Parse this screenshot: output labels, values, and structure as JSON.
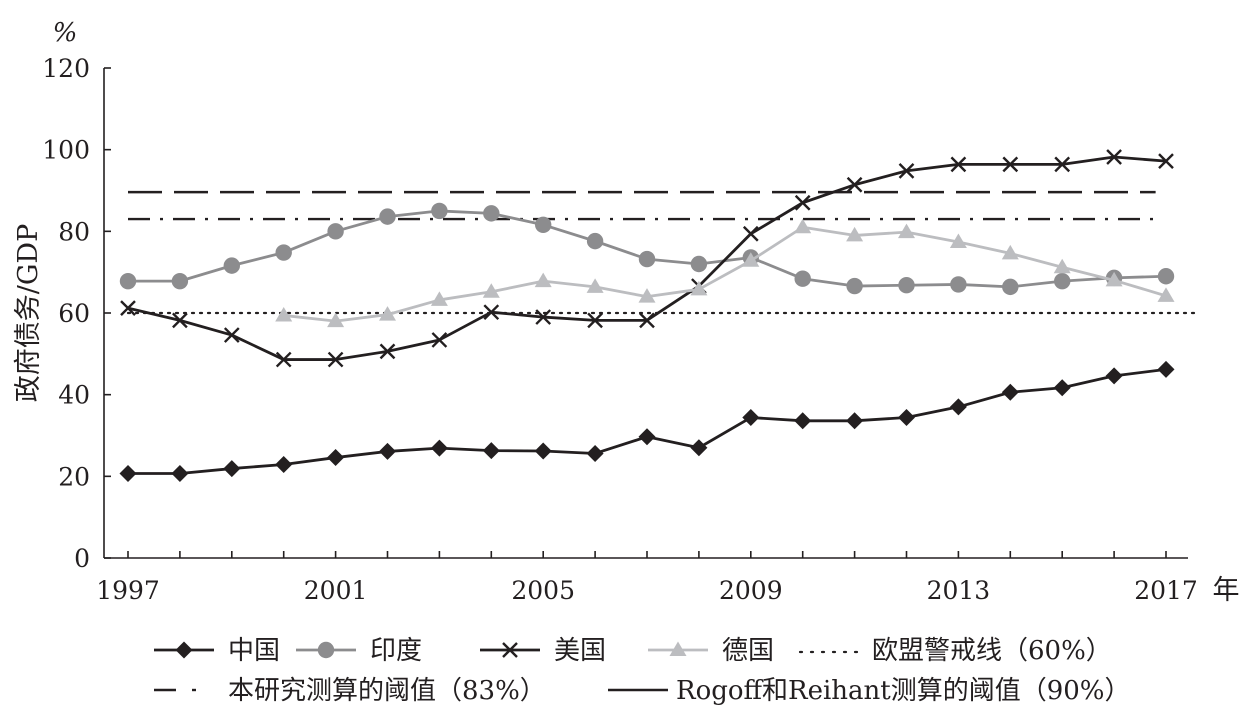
{
  "chart_data": {
    "type": "line",
    "y_unit": "%",
    "ylabel": "政府债务/GDP",
    "x_unit": "年",
    "ylim": [
      0,
      120
    ],
    "yticks": [
      0,
      20,
      40,
      60,
      80,
      100,
      120
    ],
    "xlim": [
      1997,
      2017
    ],
    "xticks": [
      1997,
      2001,
      2005,
      2009,
      2013,
      2017
    ],
    "grid": false,
    "legend_position": "bottom",
    "series": [
      {
        "name": "中国",
        "color": "#231f20",
        "marker": "diamond",
        "x": [
          1997,
          1998,
          1999,
          2000,
          2001,
          2002,
          2003,
          2004,
          2005,
          2006,
          2007,
          2008,
          2009,
          2010,
          2011,
          2012,
          2013,
          2014,
          2015,
          2016,
          2017
        ],
        "y": [
          20.7,
          20.7,
          21.9,
          22.9,
          24.6,
          26.1,
          26.9,
          26.3,
          26.2,
          25.6,
          29.7,
          27.0,
          34.4,
          33.6,
          33.6,
          34.4,
          37.0,
          40.6,
          41.7,
          44.6,
          46.2
        ]
      },
      {
        "name": "印度",
        "color": "#8c8c8e",
        "marker": "circle",
        "x": [
          1997,
          1998,
          1999,
          2000,
          2001,
          2002,
          2003,
          2004,
          2005,
          2006,
          2007,
          2008,
          2009,
          2010,
          2011,
          2012,
          2013,
          2014,
          2015,
          2016,
          2017
        ],
        "y": [
          67.8,
          67.8,
          71.6,
          74.8,
          80.0,
          83.6,
          85.0,
          84.4,
          81.6,
          77.6,
          73.2,
          72.0,
          73.6,
          68.4,
          66.6,
          66.8,
          67.0,
          66.4,
          67.8,
          68.6,
          69.0
        ]
      },
      {
        "name": "美国",
        "color": "#231f20",
        "marker": "x",
        "x": [
          1997,
          1998,
          1999,
          2000,
          2001,
          2002,
          2003,
          2004,
          2005,
          2006,
          2007,
          2008,
          2009,
          2010,
          2011,
          2012,
          2013,
          2014,
          2015,
          2016,
          2017
        ],
        "y": [
          61.2,
          58.2,
          54.6,
          48.6,
          48.6,
          50.6,
          53.4,
          60.2,
          59.0,
          58.2,
          58.2,
          66.6,
          79.4,
          87.0,
          91.4,
          94.8,
          96.4,
          96.4,
          96.4,
          98.2,
          97.2
        ]
      },
      {
        "name": "德国",
        "color": "#bcbdc0",
        "marker": "triangle",
        "x": [
          2000,
          2001,
          2002,
          2003,
          2004,
          2005,
          2006,
          2007,
          2008,
          2009,
          2010,
          2011,
          2012,
          2013,
          2014,
          2015,
          2016,
          2017
        ],
        "y": [
          59.4,
          58.0,
          59.6,
          63.2,
          65.2,
          67.8,
          66.4,
          64.0,
          65.8,
          72.8,
          81.0,
          79.0,
          79.8,
          77.4,
          74.6,
          71.2,
          68.0,
          64.2
        ]
      }
    ],
    "reference_lines": [
      {
        "name": "欧盟警戒线（60%）",
        "value": 60,
        "style": "dotted",
        "x_end": 2017.6
      },
      {
        "name": "本研究测算的阈值（83%）",
        "value": 83,
        "style": "dashdot",
        "x_end": 2016.8
      },
      {
        "name": "Rogoff和Reihant测算的阈值（90%）",
        "value": 89.6,
        "style": "longdash",
        "x_end": 2016.8
      }
    ]
  }
}
